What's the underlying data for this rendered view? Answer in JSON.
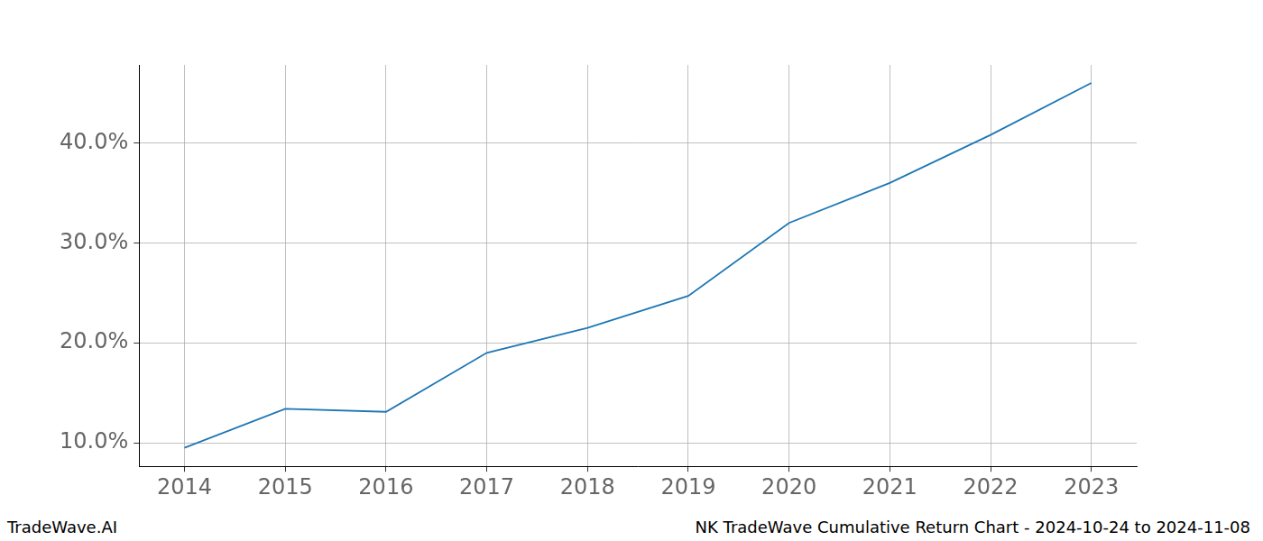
{
  "chart_data": {
    "type": "line",
    "x": [
      2014,
      2015,
      2016,
      2017,
      2018,
      2019,
      2020,
      2021,
      2022,
      2023
    ],
    "values": [
      9.5,
      13.4,
      13.1,
      19.0,
      21.5,
      24.7,
      32.0,
      36.0,
      40.8,
      46.0
    ],
    "color": "#1f77b4",
    "xlim": [
      2013.55,
      2023.45
    ],
    "xticks": [
      2014,
      2015,
      2016,
      2017,
      2018,
      2019,
      2020,
      2021,
      2022,
      2023
    ],
    "ylim": [
      7.65,
      47.8
    ],
    "yticks": [
      {
        "value": 10,
        "label": "10.0%"
      },
      {
        "value": 20,
        "label": "20.0%"
      },
      {
        "value": 30,
        "label": "30.0%"
      },
      {
        "value": 40,
        "label": "40.0%"
      }
    ],
    "grid": true,
    "annotations": [
      "TradeWave.AI",
      "NK TradeWave Cumulative Return Chart - 2024-10-24 to 2024-11-08"
    ]
  }
}
